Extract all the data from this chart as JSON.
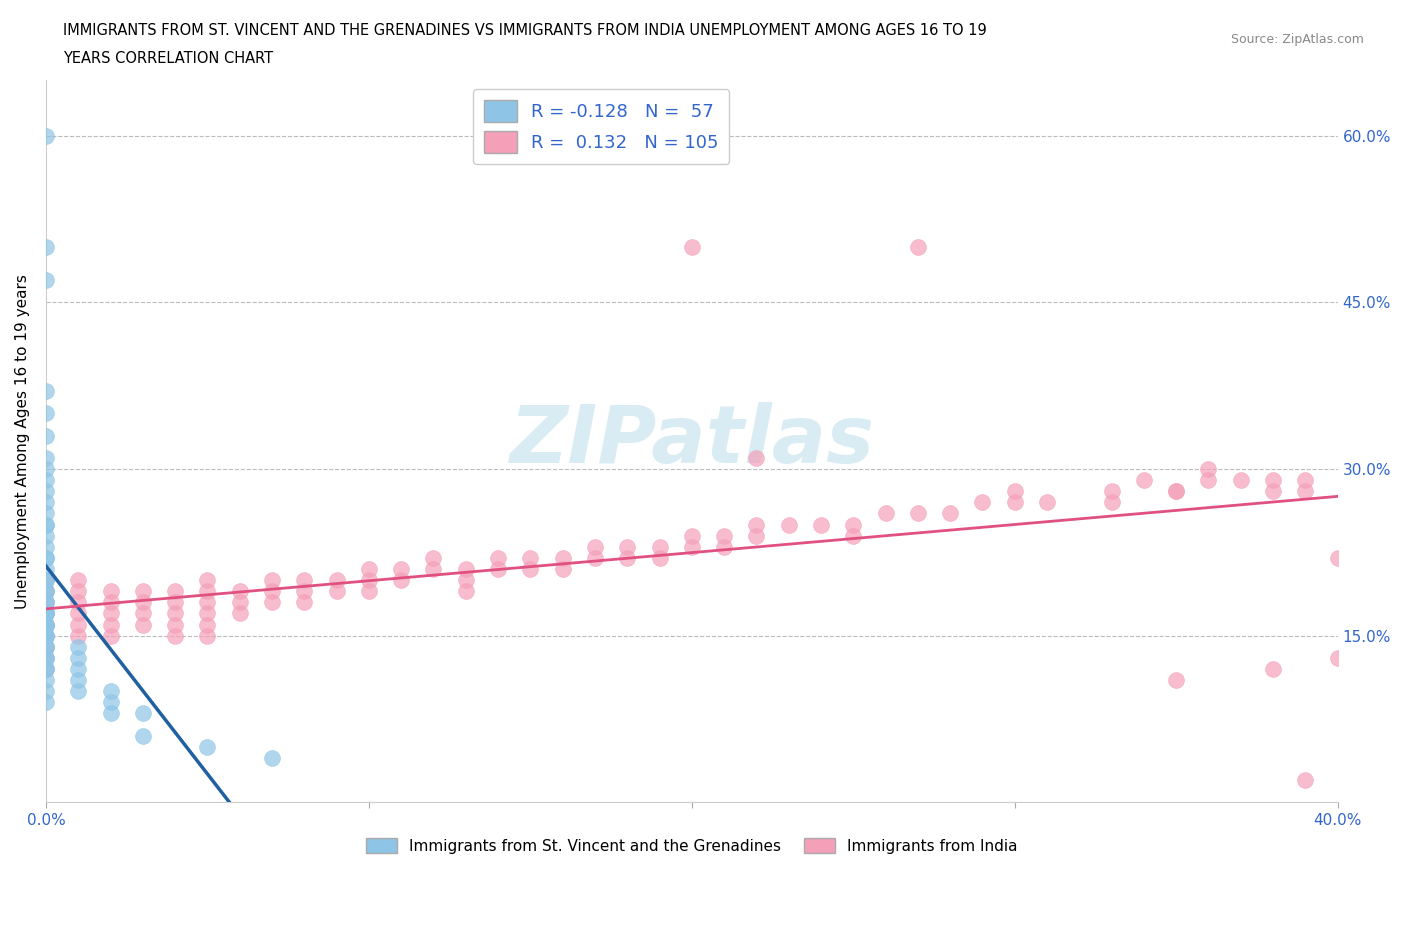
{
  "title_line1": "IMMIGRANTS FROM ST. VINCENT AND THE GRENADINES VS IMMIGRANTS FROM INDIA UNEMPLOYMENT AMONG AGES 16 TO 19",
  "title_line2": "YEARS CORRELATION CHART",
  "source": "Source: ZipAtlas.com",
  "ylabel": "Unemployment Among Ages 16 to 19 years",
  "xlim": [
    0.0,
    0.4
  ],
  "ylim": [
    0.0,
    0.65
  ],
  "x_ticks": [
    0.0,
    0.1,
    0.2,
    0.3,
    0.4
  ],
  "x_tick_labels": [
    "0.0%",
    "",
    "",
    "",
    "40.0%"
  ],
  "y_ticks": [
    0.0,
    0.15,
    0.3,
    0.45,
    0.6
  ],
  "y_tick_labels": [
    "",
    "15.0%",
    "30.0%",
    "45.0%",
    "60.0%"
  ],
  "r_blue": -0.128,
  "n_blue": 57,
  "r_pink": 0.132,
  "n_pink": 105,
  "blue_color": "#8ec5e6",
  "pink_color": "#f4a0b8",
  "blue_line_color": "#2060a0",
  "pink_line_color": "#e05080",
  "legend_label_blue": "Immigrants from St. Vincent and the Grenadines",
  "legend_label_pink": "Immigrants from India",
  "watermark": "ZIPatlas",
  "blue_scatter_x": [
    0.0,
    0.0,
    0.0,
    0.0,
    0.0,
    0.0,
    0.0,
    0.0,
    0.0,
    0.0,
    0.0,
    0.0,
    0.0,
    0.0,
    0.0,
    0.0,
    0.0,
    0.0,
    0.0,
    0.0,
    0.0,
    0.0,
    0.0,
    0.0,
    0.0,
    0.0,
    0.0,
    0.0,
    0.0,
    0.0,
    0.0,
    0.0,
    0.0,
    0.0,
    0.0,
    0.0,
    0.0,
    0.0,
    0.0,
    0.0,
    0.0,
    0.0,
    0.0,
    0.0,
    0.0,
    0.01,
    0.01,
    0.01,
    0.01,
    0.01,
    0.02,
    0.02,
    0.02,
    0.03,
    0.03,
    0.05,
    0.07
  ],
  "blue_scatter_y": [
    0.6,
    0.5,
    0.47,
    0.37,
    0.35,
    0.33,
    0.31,
    0.3,
    0.29,
    0.28,
    0.27,
    0.26,
    0.25,
    0.25,
    0.24,
    0.23,
    0.22,
    0.22,
    0.21,
    0.2,
    0.2,
    0.19,
    0.19,
    0.18,
    0.18,
    0.17,
    0.17,
    0.17,
    0.17,
    0.16,
    0.16,
    0.16,
    0.16,
    0.15,
    0.15,
    0.15,
    0.14,
    0.14,
    0.13,
    0.13,
    0.12,
    0.12,
    0.11,
    0.1,
    0.09,
    0.14,
    0.13,
    0.12,
    0.11,
    0.1,
    0.1,
    0.09,
    0.08,
    0.08,
    0.06,
    0.05,
    0.04
  ],
  "pink_scatter_x": [
    0.0,
    0.0,
    0.0,
    0.0,
    0.0,
    0.0,
    0.0,
    0.0,
    0.0,
    0.01,
    0.01,
    0.01,
    0.01,
    0.01,
    0.01,
    0.02,
    0.02,
    0.02,
    0.02,
    0.02,
    0.03,
    0.03,
    0.03,
    0.03,
    0.04,
    0.04,
    0.04,
    0.04,
    0.04,
    0.05,
    0.05,
    0.05,
    0.05,
    0.05,
    0.05,
    0.06,
    0.06,
    0.06,
    0.07,
    0.07,
    0.07,
    0.08,
    0.08,
    0.08,
    0.09,
    0.09,
    0.1,
    0.1,
    0.1,
    0.11,
    0.11,
    0.12,
    0.12,
    0.13,
    0.13,
    0.13,
    0.14,
    0.14,
    0.15,
    0.15,
    0.16,
    0.16,
    0.17,
    0.17,
    0.18,
    0.18,
    0.19,
    0.19,
    0.2,
    0.2,
    0.21,
    0.21,
    0.22,
    0.22,
    0.23,
    0.24,
    0.25,
    0.25,
    0.26,
    0.27,
    0.28,
    0.29,
    0.3,
    0.3,
    0.31,
    0.33,
    0.33,
    0.34,
    0.35,
    0.36,
    0.36,
    0.37,
    0.38,
    0.38,
    0.39,
    0.39,
    0.4,
    0.2,
    0.27,
    0.35,
    0.22,
    0.38,
    0.35,
    0.39,
    0.4
  ],
  "pink_scatter_y": [
    0.2,
    0.19,
    0.18,
    0.17,
    0.16,
    0.15,
    0.14,
    0.13,
    0.12,
    0.2,
    0.19,
    0.18,
    0.17,
    0.16,
    0.15,
    0.19,
    0.18,
    0.17,
    0.16,
    0.15,
    0.19,
    0.18,
    0.17,
    0.16,
    0.19,
    0.18,
    0.17,
    0.16,
    0.15,
    0.2,
    0.19,
    0.18,
    0.17,
    0.16,
    0.15,
    0.19,
    0.18,
    0.17,
    0.2,
    0.19,
    0.18,
    0.2,
    0.19,
    0.18,
    0.2,
    0.19,
    0.21,
    0.2,
    0.19,
    0.21,
    0.2,
    0.22,
    0.21,
    0.21,
    0.2,
    0.19,
    0.22,
    0.21,
    0.22,
    0.21,
    0.22,
    0.21,
    0.23,
    0.22,
    0.23,
    0.22,
    0.23,
    0.22,
    0.24,
    0.23,
    0.24,
    0.23,
    0.25,
    0.24,
    0.25,
    0.25,
    0.25,
    0.24,
    0.26,
    0.26,
    0.26,
    0.27,
    0.28,
    0.27,
    0.27,
    0.28,
    0.27,
    0.29,
    0.28,
    0.3,
    0.29,
    0.29,
    0.29,
    0.28,
    0.29,
    0.28,
    0.22,
    0.5,
    0.5,
    0.28,
    0.31,
    0.12,
    0.11,
    0.02,
    0.13
  ]
}
